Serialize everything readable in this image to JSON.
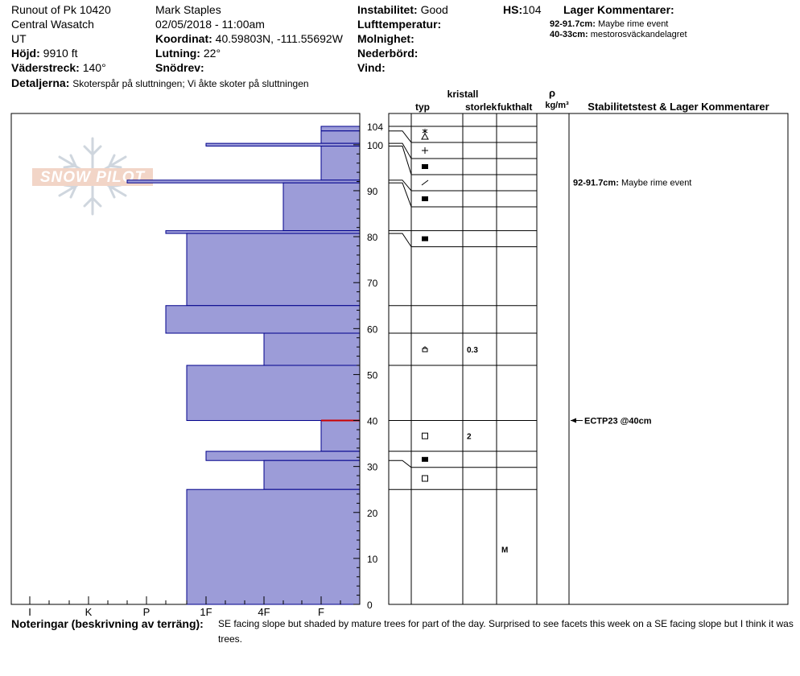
{
  "header": {
    "location_line1": "Runout of Pk 10420",
    "location_line2": "Central Wasatch",
    "location_line3": "UT",
    "elevation_label": "Höjd:",
    "elevation_value": "9910 ft",
    "aspect_label": "Väderstreck:",
    "aspect_value": "140°",
    "observer": "Mark Staples",
    "datetime": "02/05/2018 - 11:00am",
    "coords_label": "Koordinat:",
    "coords_value": "40.59803N, -111.55692W",
    "slope_label": "Lutning:",
    "slope_value": "22°",
    "wind_loading_label": "Snödrev:",
    "wind_loading_value": "",
    "instability_label": "Instabilitet:",
    "instability_value": "Good",
    "air_temp_label": "Lufttemperatur:",
    "air_temp_value": "",
    "sky_label": "Molnighet:",
    "sky_value": "",
    "precip_label": "Nederbörd:",
    "precip_value": "",
    "wind_label": "Vind:",
    "wind_value": "",
    "hs_label": "HS:",
    "hs_value": "104",
    "layer_comments_title": "Lager Kommentarer:",
    "layer_comments": [
      {
        "range": "92-91.7cm:",
        "text": "Maybe rime event"
      },
      {
        "range": "40-33cm:",
        "text": "mestorosväckandelagret"
      }
    ],
    "details_label": "Detaljerna:",
    "details_value": "Skoterspår på sluttningen; Vi åkte skoter på sluttningen"
  },
  "columns": {
    "kristall": "kristall",
    "typ": "typ",
    "storlek": "storlek",
    "fukthalt": "fukthalt",
    "rho": "ρ",
    "density_unit": "kg/m³",
    "stability": "Stabilitetstest & Lager Kommentarer"
  },
  "chart_data": {
    "type": "bar",
    "orientation": "horizontal",
    "title": "",
    "total_depth": 104,
    "y_ticks": [
      0,
      10,
      20,
      30,
      40,
      50,
      60,
      70,
      80,
      90,
      100,
      104
    ],
    "hardness_ticks": [
      "I",
      "K",
      "P",
      "1F",
      "4F",
      "F"
    ],
    "layers": [
      {
        "top": 104,
        "bottom": 103,
        "hardness": "F"
      },
      {
        "top": 103,
        "bottom": 100.3,
        "hardness": "F"
      },
      {
        "top": 100.3,
        "bottom": 99.7,
        "hardness": "1F"
      },
      {
        "top": 99.7,
        "bottom": 92.3,
        "hardness": "F"
      },
      {
        "top": 92.3,
        "bottom": 91.7,
        "hardness": "P-"
      },
      {
        "top": 91.7,
        "bottom": 81.3,
        "hardness": "4F+"
      },
      {
        "top": 81.3,
        "bottom": 80.7,
        "hardness": "P+"
      },
      {
        "top": 80.7,
        "bottom": 65,
        "hardness": "1F-"
      },
      {
        "top": 65,
        "bottom": 59,
        "hardness": "P+"
      },
      {
        "top": 59,
        "bottom": 52,
        "hardness": "4F"
      },
      {
        "top": 52,
        "bottom": 40,
        "hardness": "1F-"
      },
      {
        "top": 40,
        "bottom": 33.3,
        "hardness": "F"
      },
      {
        "top": 33.3,
        "bottom": 31.3,
        "hardness": "1F"
      },
      {
        "top": 31.3,
        "bottom": 25,
        "hardness": "4F"
      },
      {
        "top": 25,
        "bottom": 0,
        "hardness": "1F-"
      }
    ],
    "crystal_rows": [
      {
        "top": 104,
        "bottom": 103,
        "symbol": "star-triangle",
        "size": "",
        "moisture": ""
      },
      {
        "top": 103,
        "bottom": 100.3,
        "symbol": "plus",
        "size": "",
        "moisture": ""
      },
      {
        "top": 100.3,
        "bottom": 99.7,
        "symbol": "square-filled",
        "size": "",
        "moisture": ""
      },
      {
        "top": 99.7,
        "bottom": 92.3,
        "symbol": "slash",
        "size": "",
        "moisture": ""
      },
      {
        "top": 92.3,
        "bottom": 91.7,
        "symbol": "square-filled",
        "size": "",
        "moisture": ""
      },
      {
        "top": 91.7,
        "bottom": 81.3,
        "symbol": "",
        "size": "",
        "moisture": ""
      },
      {
        "top": 81.3,
        "bottom": 80.7,
        "symbol": "square-filled",
        "size": "",
        "moisture": ""
      },
      {
        "top": 80.7,
        "bottom": 65,
        "symbol": "",
        "size": "",
        "moisture": ""
      },
      {
        "top": 65,
        "bottom": 59,
        "symbol": "",
        "size": "",
        "moisture": ""
      },
      {
        "top": 59,
        "bottom": 52,
        "symbol": "facet-cup",
        "size": "0.3",
        "moisture": ""
      },
      {
        "top": 52,
        "bottom": 40,
        "symbol": "",
        "size": "",
        "moisture": ""
      },
      {
        "top": 40,
        "bottom": 33.3,
        "symbol": "square-open",
        "size": "2",
        "moisture": ""
      },
      {
        "top": 33.3,
        "bottom": 31.3,
        "symbol": "square-filled",
        "size": "",
        "moisture": ""
      },
      {
        "top": 31.3,
        "bottom": 25,
        "symbol": "square-open",
        "size": "",
        "moisture": ""
      },
      {
        "top": 25,
        "bottom": 0,
        "symbol": "",
        "size": "",
        "moisture": "M"
      }
    ],
    "stability_comments": [
      {
        "depth": 91.85,
        "text": "92-91.7cm:",
        "detail": "Maybe rime event"
      }
    ],
    "tests": [
      {
        "depth": 40,
        "text": "ECTP23 @40cm"
      }
    ],
    "failure_line_depth": 40,
    "colors": {
      "layer_fill": "#9c9cd8",
      "layer_stroke": "#00008b",
      "failure": "#cc0000"
    }
  },
  "notes": {
    "label": "Noteringar (beskrivning av terräng):",
    "line1": "SE facing slope but shaded by mature trees for part of the day. Surprised to see facets this week on a SE facing slope but I think it was",
    "line2": "trees."
  },
  "watermark": {
    "text": "SNOW PILOT"
  }
}
